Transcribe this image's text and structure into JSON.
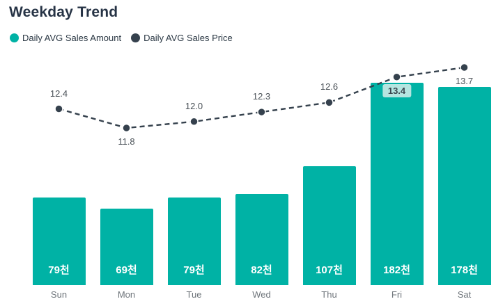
{
  "title": "Weekday Trend",
  "legend": [
    {
      "label": "Daily AVG Sales Amount",
      "color": "#00b2a5",
      "icon": "circle-swatch-icon"
    },
    {
      "label": "Daily AVG Sales Price",
      "color": "#35414d",
      "icon": "circle-swatch-icon"
    }
  ],
  "chart_data": {
    "type": "bar",
    "title": "Weekday Trend",
    "categories": [
      "Sun",
      "Mon",
      "Tue",
      "Wed",
      "Thu",
      "Fri",
      "Sat"
    ],
    "grid": false,
    "legend_position": "top-left",
    "series": [
      {
        "name": "Daily AVG Sales Amount",
        "type": "bar",
        "values": [
          79,
          69,
          79,
          82,
          107,
          182,
          178
        ],
        "value_labels": [
          "79천",
          "69천",
          "79천",
          "82천",
          "107천",
          "182천",
          "178천"
        ],
        "unit": "천",
        "color": "#00b2a5",
        "ylim": [
          0,
          205
        ]
      },
      {
        "name": "Daily AVG Sales Price",
        "type": "line",
        "line_style": "dashed",
        "values": [
          12.4,
          11.8,
          12.0,
          12.3,
          12.6,
          13.4,
          13.7
        ],
        "value_labels": [
          "12.4",
          "11.8",
          "12.0",
          "12.3",
          "12.6",
          "13.4",
          "13.7"
        ],
        "color": "#35414d",
        "y2lim": [
          11.5,
          14.2
        ],
        "label_positions": [
          "above",
          "below",
          "above",
          "above",
          "above",
          "below",
          "below"
        ],
        "highlighted_label_index": 5,
        "highlight_bg": "#b5e5e0"
      }
    ]
  }
}
